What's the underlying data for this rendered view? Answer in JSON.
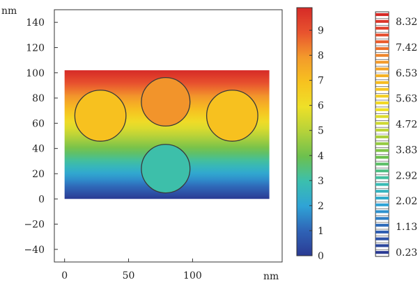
{
  "chart_data": {
    "type": "heatmap",
    "xlabel": "nm",
    "ylabel": "nm",
    "x_ticks": [
      0,
      50,
      100
    ],
    "y_ticks": [
      -40,
      -20,
      0,
      20,
      40,
      60,
      80,
      100,
      120,
      140
    ],
    "xlim": [
      -8,
      170
    ],
    "ylim": [
      -50,
      150
    ],
    "domain": {
      "x": [
        0,
        160
      ],
      "y": [
        0,
        102
      ]
    },
    "circles": [
      {
        "name": "circle-left",
        "cx": 28,
        "cy": 66,
        "r": 20
      },
      {
        "name": "circle-top-middle",
        "cx": 79,
        "cy": 77,
        "r": 19
      },
      {
        "name": "circle-right",
        "cx": 131,
        "cy": 66,
        "r": 20
      },
      {
        "name": "circle-bottom-middle",
        "cx": 79,
        "cy": 24,
        "r": 19
      }
    ],
    "colorbar1": {
      "ticks": [
        0,
        1,
        2,
        3,
        4,
        5,
        6,
        7,
        8,
        9
      ],
      "range": [
        0,
        9.9
      ]
    },
    "colorbar2": {
      "labels": [
        "8.32",
        "7.42",
        "6.53",
        "5.63",
        "4.72",
        "3.83",
        "2.92",
        "2.02",
        "1.13",
        "0.23"
      ],
      "levels": 36
    },
    "colormap": [
      "#2a3a93",
      "#2f63b6",
      "#2fa3d6",
      "#3bbfae",
      "#6cc04e",
      "#b4d23a",
      "#eee028",
      "#f7c21f",
      "#f39a2b",
      "#e8532e",
      "#d62a27"
    ],
    "grid": false,
    "legend": "colorbars on the right"
  }
}
